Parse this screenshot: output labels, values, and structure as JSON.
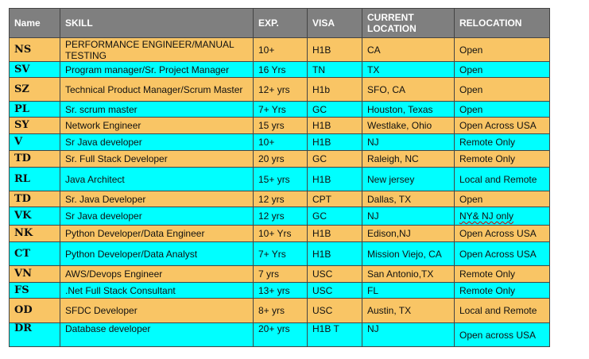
{
  "table": {
    "headers": {
      "name": "Name",
      "skill": "SKILL",
      "exp": "EXP.",
      "visa": "VISA",
      "location": "CURRENT LOCATION",
      "relocation": "RELOCATION"
    },
    "rows": [
      {
        "code": "NS",
        "skill": "PERFORMANCE ENGINEER/MANUAL TESTING",
        "exp": "10+",
        "visa": "H1B",
        "location": "CA",
        "relocation": "Open"
      },
      {
        "code": "SV",
        "skill": "Program manager/Sr. Project Manager",
        "exp": "16 Yrs",
        "visa": "TN",
        "location": "TX",
        "relocation": "Open"
      },
      {
        "code": "SZ",
        "skill": "Technical Product Manager/Scrum Master",
        "exp": "12+ yrs",
        "visa": "H1b",
        "location": "SFO, CA",
        "relocation": "Open"
      },
      {
        "code": "PL",
        "skill": "Sr. scrum master",
        "exp": "7+ Yrs",
        "visa": "GC",
        "location": "Houston, Texas",
        "relocation": "Open"
      },
      {
        "code": "SY",
        "skill": "Network Engineer",
        "exp": "15 yrs",
        "visa": "H1B",
        "location": "Westlake, Ohio",
        "relocation": "Open Across USA"
      },
      {
        "code": "V",
        "skill": "Sr Java developer",
        "exp": "10+",
        "visa": "H1B",
        "location": "NJ",
        "relocation": "Remote Only"
      },
      {
        "code": "TD",
        "skill": "Sr. Full Stack Developer",
        "exp": "20 yrs",
        "visa": "GC",
        "location": "Raleigh, NC",
        "relocation": "Remote Only"
      },
      {
        "code": "RL",
        "skill": "Java Architect",
        "exp": "15+ yrs",
        "visa": "H1B",
        "location": "New jersey",
        "relocation": "Local and Remote"
      },
      {
        "code": "TD",
        "skill": "Sr. Java Developer",
        "exp": "12 yrs",
        "visa": "CPT",
        "location": "Dallas, TX",
        "relocation": "Open"
      },
      {
        "code": "VK",
        "skill": "Sr Java developer",
        "exp": "12 yrs",
        "visa": "GC",
        "location": "NJ",
        "relocation": "NY& NJ only"
      },
      {
        "code": "NK",
        "skill": "Python Developer/Data Engineer",
        "exp": "10+ Yrs",
        "visa": "H1B",
        "location": "Edison,NJ",
        "relocation": "Open Across USA"
      },
      {
        "code": "CT",
        "skill": "Python Developer/Data Analyst",
        "exp": "7+ Yrs",
        "visa": "H1B",
        "location": "Mission Viejo, CA",
        "relocation": "Open Across USA"
      },
      {
        "code": "VN",
        "skill": "AWS/Devops Engineer",
        "exp": "7 yrs",
        "visa": "USC",
        "location": "San Antonio,TX",
        "relocation": "Remote Only"
      },
      {
        "code": "FS",
        "skill": ".Net Full Stack Consultant",
        "exp": "13+ yrs",
        "visa": "USC",
        "location": "FL",
        "relocation": "Remote Only"
      },
      {
        "code": "OD",
        "skill": "SFDC Developer",
        "exp": "8+ yrs",
        "visa": "USC",
        "location": "Austin, TX",
        "relocation": "Local and Remote"
      },
      {
        "code": "DR",
        "skill": "Database developer",
        "exp": "20+ yrs",
        "visa": "H1B T",
        "location": "NJ",
        "relocation": "Open across USA"
      }
    ]
  }
}
